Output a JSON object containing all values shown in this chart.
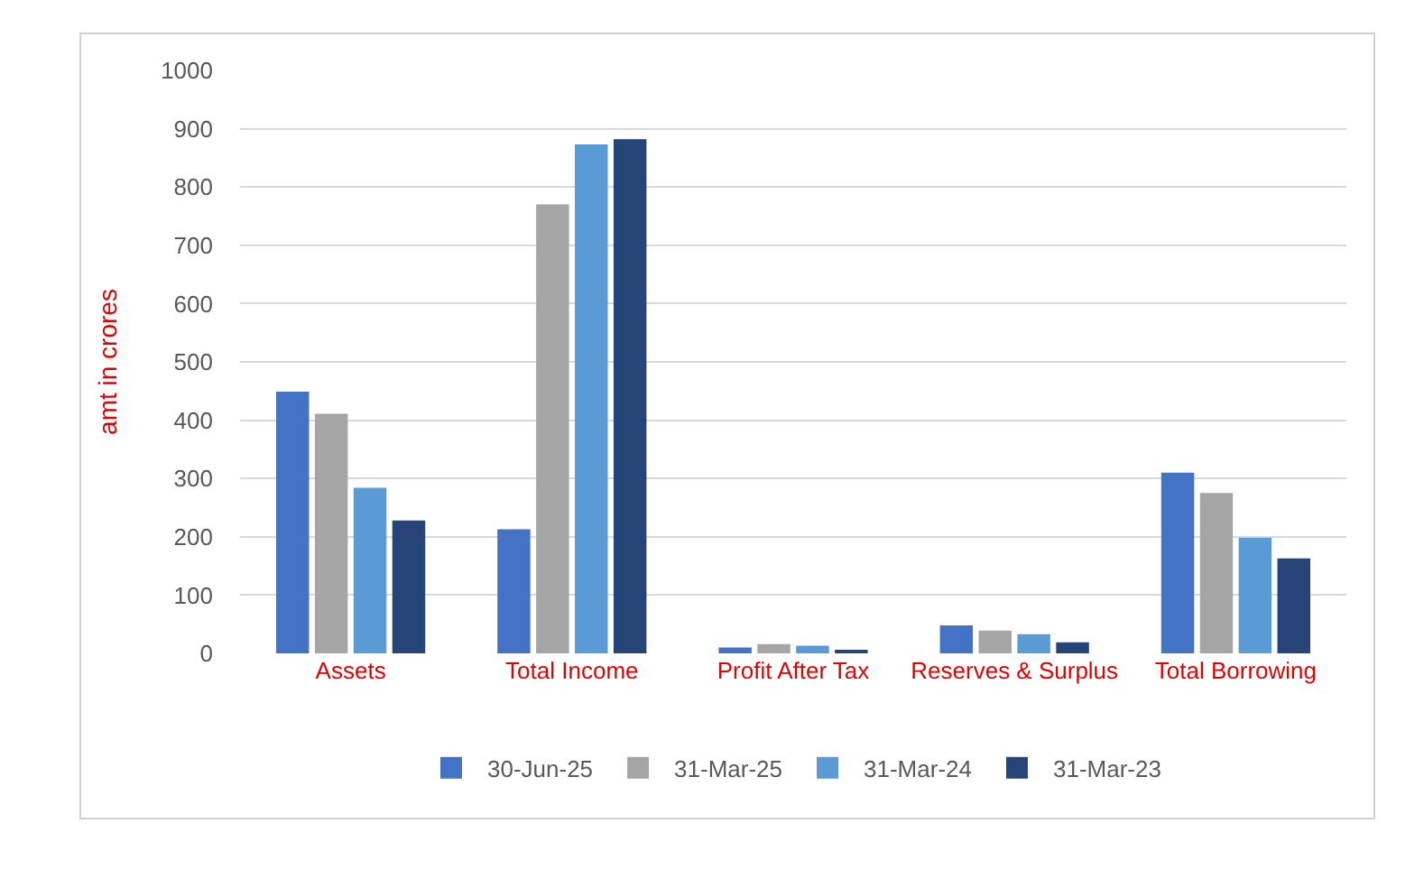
{
  "chart_data": {
    "type": "bar",
    "ylabel": "amt in crores",
    "categories": [
      "Assets",
      "Total Income",
      "Profit After Tax",
      "Reserves & Surplus",
      "Total Borrowing"
    ],
    "series": [
      {
        "name": "30-Jun-25",
        "color": "#4472c4",
        "values": [
          449,
          213,
          10,
          48,
          310
        ]
      },
      {
        "name": "31-Mar-25",
        "color": "#a5a5a5",
        "values": [
          411,
          770,
          16,
          39,
          275
        ]
      },
      {
        "name": "31-Mar-24",
        "color": "#5b9bd5",
        "values": [
          284,
          873,
          13,
          33,
          198
        ]
      },
      {
        "name": "31-Mar-23",
        "color": "#264478",
        "values": [
          228,
          882,
          4,
          19,
          163
        ]
      }
    ],
    "ylim": [
      0,
      1000
    ],
    "yticks": [
      0,
      100,
      200,
      300,
      400,
      500,
      600,
      700,
      800,
      900,
      1000
    ],
    "grid": "y",
    "legend": "bottom"
  }
}
